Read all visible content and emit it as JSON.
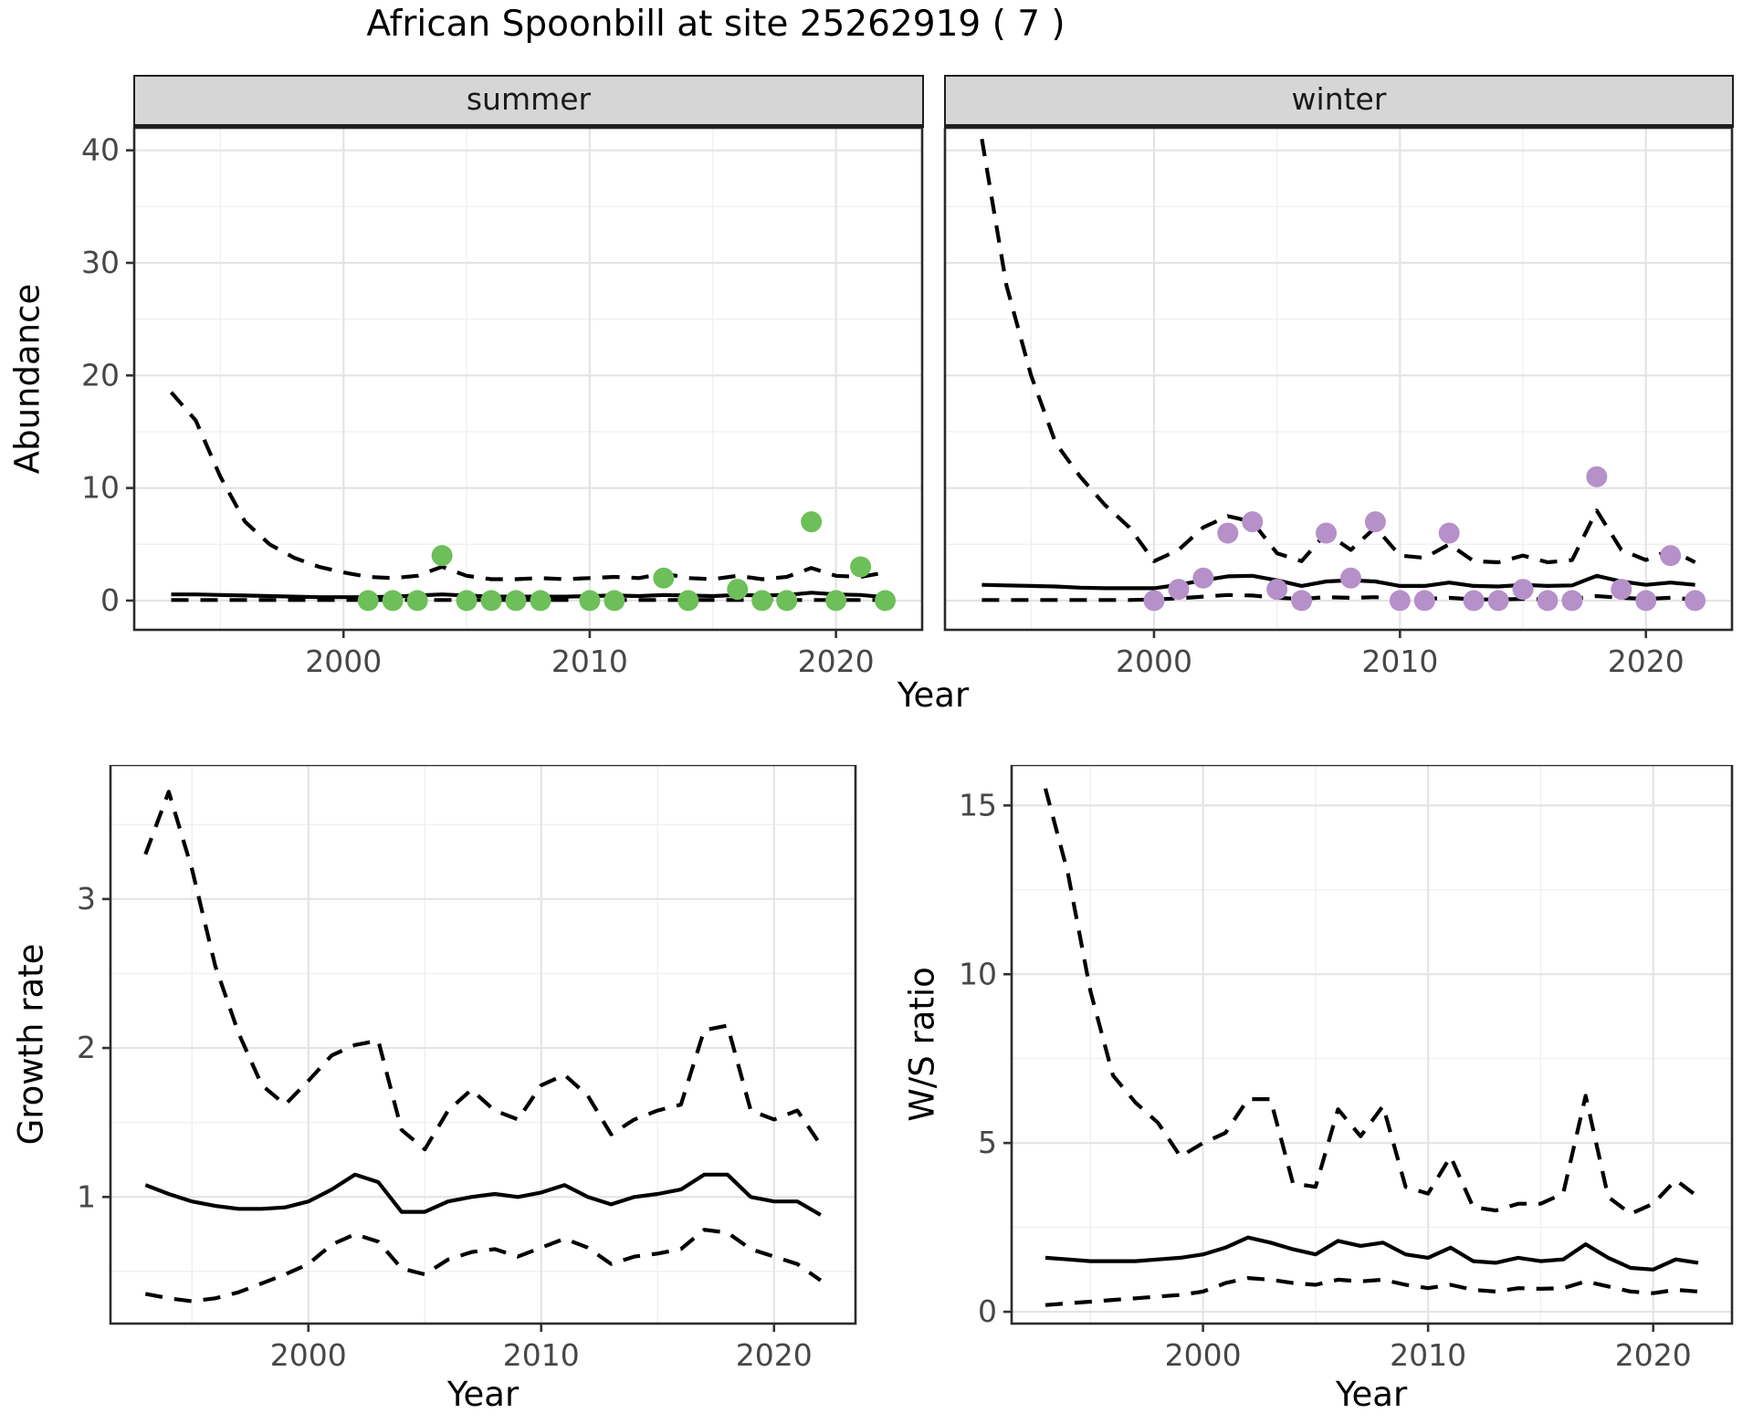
{
  "title": "African Spoonbill at site 25262919 ( 7 )",
  "axes": {
    "x_title": "Year",
    "abundance_title": "Abundance",
    "growth_title": "Growth rate",
    "ws_title": "W/S ratio"
  },
  "facets": {
    "summer": "summer",
    "winter": "winter"
  },
  "colors": {
    "summer_point": "#6dbf59",
    "winter_point": "#b690c9",
    "line": "#000000",
    "grid_major": "#e4e4e4",
    "grid_minor": "#f0f0f0",
    "panel_border": "#2b2b2b",
    "tick_text": "#474747",
    "strip_bg": "#d6d6d6"
  },
  "chart_data": [
    {
      "id": "abundance-summer",
      "type": "line+scatter",
      "strip": "summer",
      "ylabel": "Abundance",
      "xlabel": "Year",
      "xlim": [
        1991.5,
        2023.5
      ],
      "ylim": [
        -2.6,
        42.0
      ],
      "xticks": [
        2000,
        2010,
        2020
      ],
      "xtick_labels": [
        "2000",
        "2010",
        "2020"
      ],
      "x_minor": [
        1995,
        2005,
        2015
      ],
      "yticks": [
        0,
        10,
        20,
        30,
        40
      ],
      "ytick_labels": [
        "0",
        "10",
        "20",
        "30",
        "40"
      ],
      "y_minor": [
        5,
        15,
        25,
        35
      ],
      "show_y_labels": true,
      "point_color": "#6dbf59",
      "x": [
        1993,
        1994,
        1995,
        1996,
        1997,
        1998,
        1999,
        2000,
        2001,
        2002,
        2003,
        2004,
        2005,
        2006,
        2007,
        2008,
        2009,
        2010,
        2011,
        2012,
        2013,
        2014,
        2015,
        2016,
        2017,
        2018,
        2019,
        2020,
        2021,
        2022
      ],
      "series": [
        {
          "name": "upper_ci",
          "style": "dashed",
          "values": [
            18.5,
            16.0,
            11.0,
            7.0,
            5.0,
            3.8,
            3.0,
            2.5,
            2.1,
            2.0,
            2.2,
            3.0,
            2.2,
            1.9,
            1.9,
            2.0,
            1.9,
            2.0,
            2.1,
            2.0,
            2.4,
            2.0,
            1.9,
            2.2,
            1.9,
            2.1,
            2.9,
            2.2,
            2.1,
            2.5
          ]
        },
        {
          "name": "lower_ci",
          "style": "dashed",
          "values": [
            0.05,
            0.05,
            0.05,
            0.05,
            0.05,
            0.05,
            0.05,
            0.05,
            0.05,
            0.05,
            0.05,
            0.05,
            0.05,
            0.05,
            0.05,
            0.05,
            0.05,
            0.05,
            0.05,
            0.05,
            0.05,
            0.05,
            0.05,
            0.05,
            0.05,
            0.05,
            0.05,
            0.05,
            0.05,
            0.05
          ]
        },
        {
          "name": "fit",
          "style": "solid",
          "values": [
            0.55,
            0.55,
            0.5,
            0.45,
            0.4,
            0.35,
            0.3,
            0.3,
            0.3,
            0.35,
            0.45,
            0.55,
            0.45,
            0.35,
            0.35,
            0.35,
            0.35,
            0.4,
            0.45,
            0.4,
            0.5,
            0.45,
            0.4,
            0.5,
            0.45,
            0.5,
            0.7,
            0.55,
            0.5,
            0.3
          ]
        }
      ],
      "points": {
        "x": [
          2001,
          2002,
          2003,
          2004,
          2005,
          2006,
          2007,
          2008,
          2010,
          2011,
          2013,
          2014,
          2016,
          2017,
          2018,
          2019,
          2020,
          2021,
          2022
        ],
        "y": [
          0,
          0,
          0,
          4,
          0,
          0,
          0,
          0,
          0,
          0,
          2,
          0,
          1,
          0,
          0,
          7,
          0,
          3,
          0
        ]
      }
    },
    {
      "id": "abundance-winter",
      "type": "line+scatter",
      "strip": "winter",
      "ylabel": "Abundance",
      "xlabel": "Year",
      "xlim": [
        1991.5,
        2023.5
      ],
      "ylim": [
        -2.6,
        42.0
      ],
      "xticks": [
        2000,
        2010,
        2020
      ],
      "xtick_labels": [
        "2000",
        "2010",
        "2020"
      ],
      "x_minor": [
        1995,
        2005,
        2015
      ],
      "yticks": [
        0,
        10,
        20,
        30,
        40
      ],
      "ytick_labels": [
        "0",
        "10",
        "20",
        "30",
        "40"
      ],
      "y_minor": [
        5,
        15,
        25,
        35
      ],
      "show_y_labels": false,
      "point_color": "#b690c9",
      "x": [
        1993,
        1994,
        1995,
        1996,
        1997,
        1998,
        1999,
        2000,
        2001,
        2002,
        2003,
        2004,
        2005,
        2006,
        2007,
        2008,
        2009,
        2010,
        2011,
        2012,
        2013,
        2014,
        2015,
        2016,
        2017,
        2018,
        2019,
        2020,
        2021,
        2022
      ],
      "series": [
        {
          "name": "upper_ci",
          "style": "dashed",
          "values": [
            41.0,
            28.0,
            20.0,
            14.0,
            11.0,
            8.5,
            6.5,
            3.5,
            4.5,
            6.5,
            7.5,
            7.0,
            4.2,
            3.5,
            6.0,
            4.5,
            6.5,
            4.0,
            3.8,
            5.0,
            3.5,
            3.4,
            4.0,
            3.4,
            3.6,
            8.0,
            4.5,
            3.6,
            4.5,
            3.4
          ]
        },
        {
          "name": "lower_ci",
          "style": "dashed",
          "values": [
            0.05,
            0.05,
            0.05,
            0.05,
            0.05,
            0.05,
            0.05,
            0.1,
            0.2,
            0.35,
            0.5,
            0.45,
            0.25,
            0.15,
            0.3,
            0.25,
            0.3,
            0.15,
            0.15,
            0.25,
            0.1,
            0.1,
            0.15,
            0.1,
            0.15,
            0.4,
            0.25,
            0.15,
            0.25,
            0.1
          ]
        },
        {
          "name": "fit",
          "style": "solid",
          "values": [
            1.4,
            1.35,
            1.3,
            1.25,
            1.15,
            1.1,
            1.1,
            1.1,
            1.4,
            1.8,
            2.15,
            2.2,
            1.8,
            1.3,
            1.7,
            1.8,
            1.7,
            1.3,
            1.3,
            1.6,
            1.3,
            1.25,
            1.4,
            1.3,
            1.35,
            2.2,
            1.7,
            1.4,
            1.6,
            1.4
          ]
        }
      ],
      "points": {
        "x": [
          2000,
          2001,
          2002,
          2003,
          2004,
          2005,
          2006,
          2007,
          2008,
          2009,
          2010,
          2011,
          2012,
          2013,
          2014,
          2015,
          2016,
          2017,
          2018,
          2019,
          2020,
          2021,
          2022
        ],
        "y": [
          0,
          1,
          2,
          6,
          7,
          1,
          0,
          6,
          2,
          7,
          0,
          0,
          6,
          0,
          0,
          1,
          0,
          0,
          11,
          1,
          0,
          4,
          0
        ]
      }
    },
    {
      "id": "growth-rate",
      "type": "line",
      "strip": null,
      "ylabel": "Growth rate",
      "xlabel": "Year",
      "xlim": [
        1991.5,
        2023.5
      ],
      "ylim": [
        0.15,
        3.9
      ],
      "xticks": [
        2000,
        2010,
        2020
      ],
      "xtick_labels": [
        "2000",
        "2010",
        "2020"
      ],
      "x_minor": [
        1995,
        2005,
        2015
      ],
      "yticks": [
        1,
        2,
        3
      ],
      "ytick_labels": [
        "1",
        "2",
        "3"
      ],
      "y_minor": [
        0.5,
        1.5,
        2.5,
        3.5
      ],
      "show_y_labels": true,
      "x": [
        1993,
        1994,
        1995,
        1996,
        1997,
        1998,
        1999,
        2000,
        2001,
        2002,
        2003,
        2004,
        2005,
        2006,
        2007,
        2008,
        2009,
        2010,
        2011,
        2012,
        2013,
        2014,
        2015,
        2016,
        2017,
        2018,
        2019,
        2020,
        2021,
        2022
      ],
      "series": [
        {
          "name": "upper_ci",
          "style": "dashed",
          "values": [
            3.3,
            3.72,
            3.2,
            2.55,
            2.1,
            1.75,
            1.62,
            1.78,
            1.95,
            2.02,
            2.05,
            1.45,
            1.32,
            1.58,
            1.72,
            1.58,
            1.52,
            1.75,
            1.82,
            1.68,
            1.42,
            1.52,
            1.58,
            1.62,
            2.12,
            2.15,
            1.58,
            1.52,
            1.58,
            1.35
          ]
        },
        {
          "name": "lower_ci",
          "style": "dashed",
          "values": [
            0.35,
            0.32,
            0.3,
            0.32,
            0.36,
            0.42,
            0.48,
            0.55,
            0.68,
            0.75,
            0.7,
            0.52,
            0.48,
            0.58,
            0.63,
            0.65,
            0.6,
            0.66,
            0.72,
            0.66,
            0.55,
            0.6,
            0.62,
            0.65,
            0.78,
            0.76,
            0.65,
            0.6,
            0.55,
            0.44
          ]
        },
        {
          "name": "fit",
          "style": "solid",
          "values": [
            1.08,
            1.02,
            0.97,
            0.94,
            0.92,
            0.92,
            0.93,
            0.97,
            1.05,
            1.15,
            1.1,
            0.9,
            0.9,
            0.97,
            1.0,
            1.02,
            1.0,
            1.03,
            1.08,
            1.0,
            0.95,
            1.0,
            1.02,
            1.05,
            1.15,
            1.15,
            1.0,
            0.97,
            0.97,
            0.88
          ]
        }
      ]
    },
    {
      "id": "ws-ratio",
      "type": "line",
      "strip": null,
      "ylabel": "W/S ratio",
      "xlabel": "Year",
      "xlim": [
        1991.5,
        2023.5
      ],
      "ylim": [
        -0.35,
        16.2
      ],
      "xticks": [
        2000,
        2010,
        2020
      ],
      "xtick_labels": [
        "2000",
        "2010",
        "2020"
      ],
      "x_minor": [
        1995,
        2005,
        2015
      ],
      "yticks": [
        0,
        5,
        10,
        15
      ],
      "ytick_labels": [
        "0",
        "5",
        "10",
        "15"
      ],
      "y_minor": [
        2.5,
        7.5,
        12.5
      ],
      "show_y_labels": true,
      "x": [
        1993,
        1994,
        1995,
        1996,
        1997,
        1998,
        1999,
        2000,
        2001,
        2002,
        2003,
        2004,
        2005,
        2006,
        2007,
        2008,
        2009,
        2010,
        2011,
        2012,
        2013,
        2014,
        2015,
        2016,
        2017,
        2018,
        2019,
        2020,
        2021,
        2022
      ],
      "series": [
        {
          "name": "upper_ci",
          "style": "dashed",
          "values": [
            15.5,
            13.0,
            9.5,
            7.0,
            6.2,
            5.6,
            4.6,
            5.0,
            5.3,
            6.3,
            6.3,
            3.8,
            3.7,
            6.0,
            5.2,
            6.1,
            3.7,
            3.5,
            4.6,
            3.1,
            3.0,
            3.2,
            3.2,
            3.5,
            6.4,
            3.4,
            2.9,
            3.2,
            3.9,
            3.4
          ]
        },
        {
          "name": "lower_ci",
          "style": "dashed",
          "values": [
            0.2,
            0.25,
            0.3,
            0.35,
            0.4,
            0.45,
            0.5,
            0.6,
            0.85,
            1.0,
            0.95,
            0.85,
            0.8,
            0.95,
            0.9,
            0.95,
            0.8,
            0.7,
            0.8,
            0.65,
            0.6,
            0.7,
            0.68,
            0.7,
            0.9,
            0.75,
            0.6,
            0.55,
            0.65,
            0.6
          ]
        },
        {
          "name": "fit",
          "style": "solid",
          "values": [
            1.6,
            1.55,
            1.5,
            1.5,
            1.5,
            1.55,
            1.6,
            1.7,
            1.9,
            2.2,
            2.05,
            1.85,
            1.7,
            2.1,
            1.95,
            2.05,
            1.7,
            1.6,
            1.9,
            1.5,
            1.45,
            1.6,
            1.5,
            1.55,
            2.0,
            1.6,
            1.3,
            1.25,
            1.55,
            1.45
          ]
        }
      ]
    }
  ]
}
